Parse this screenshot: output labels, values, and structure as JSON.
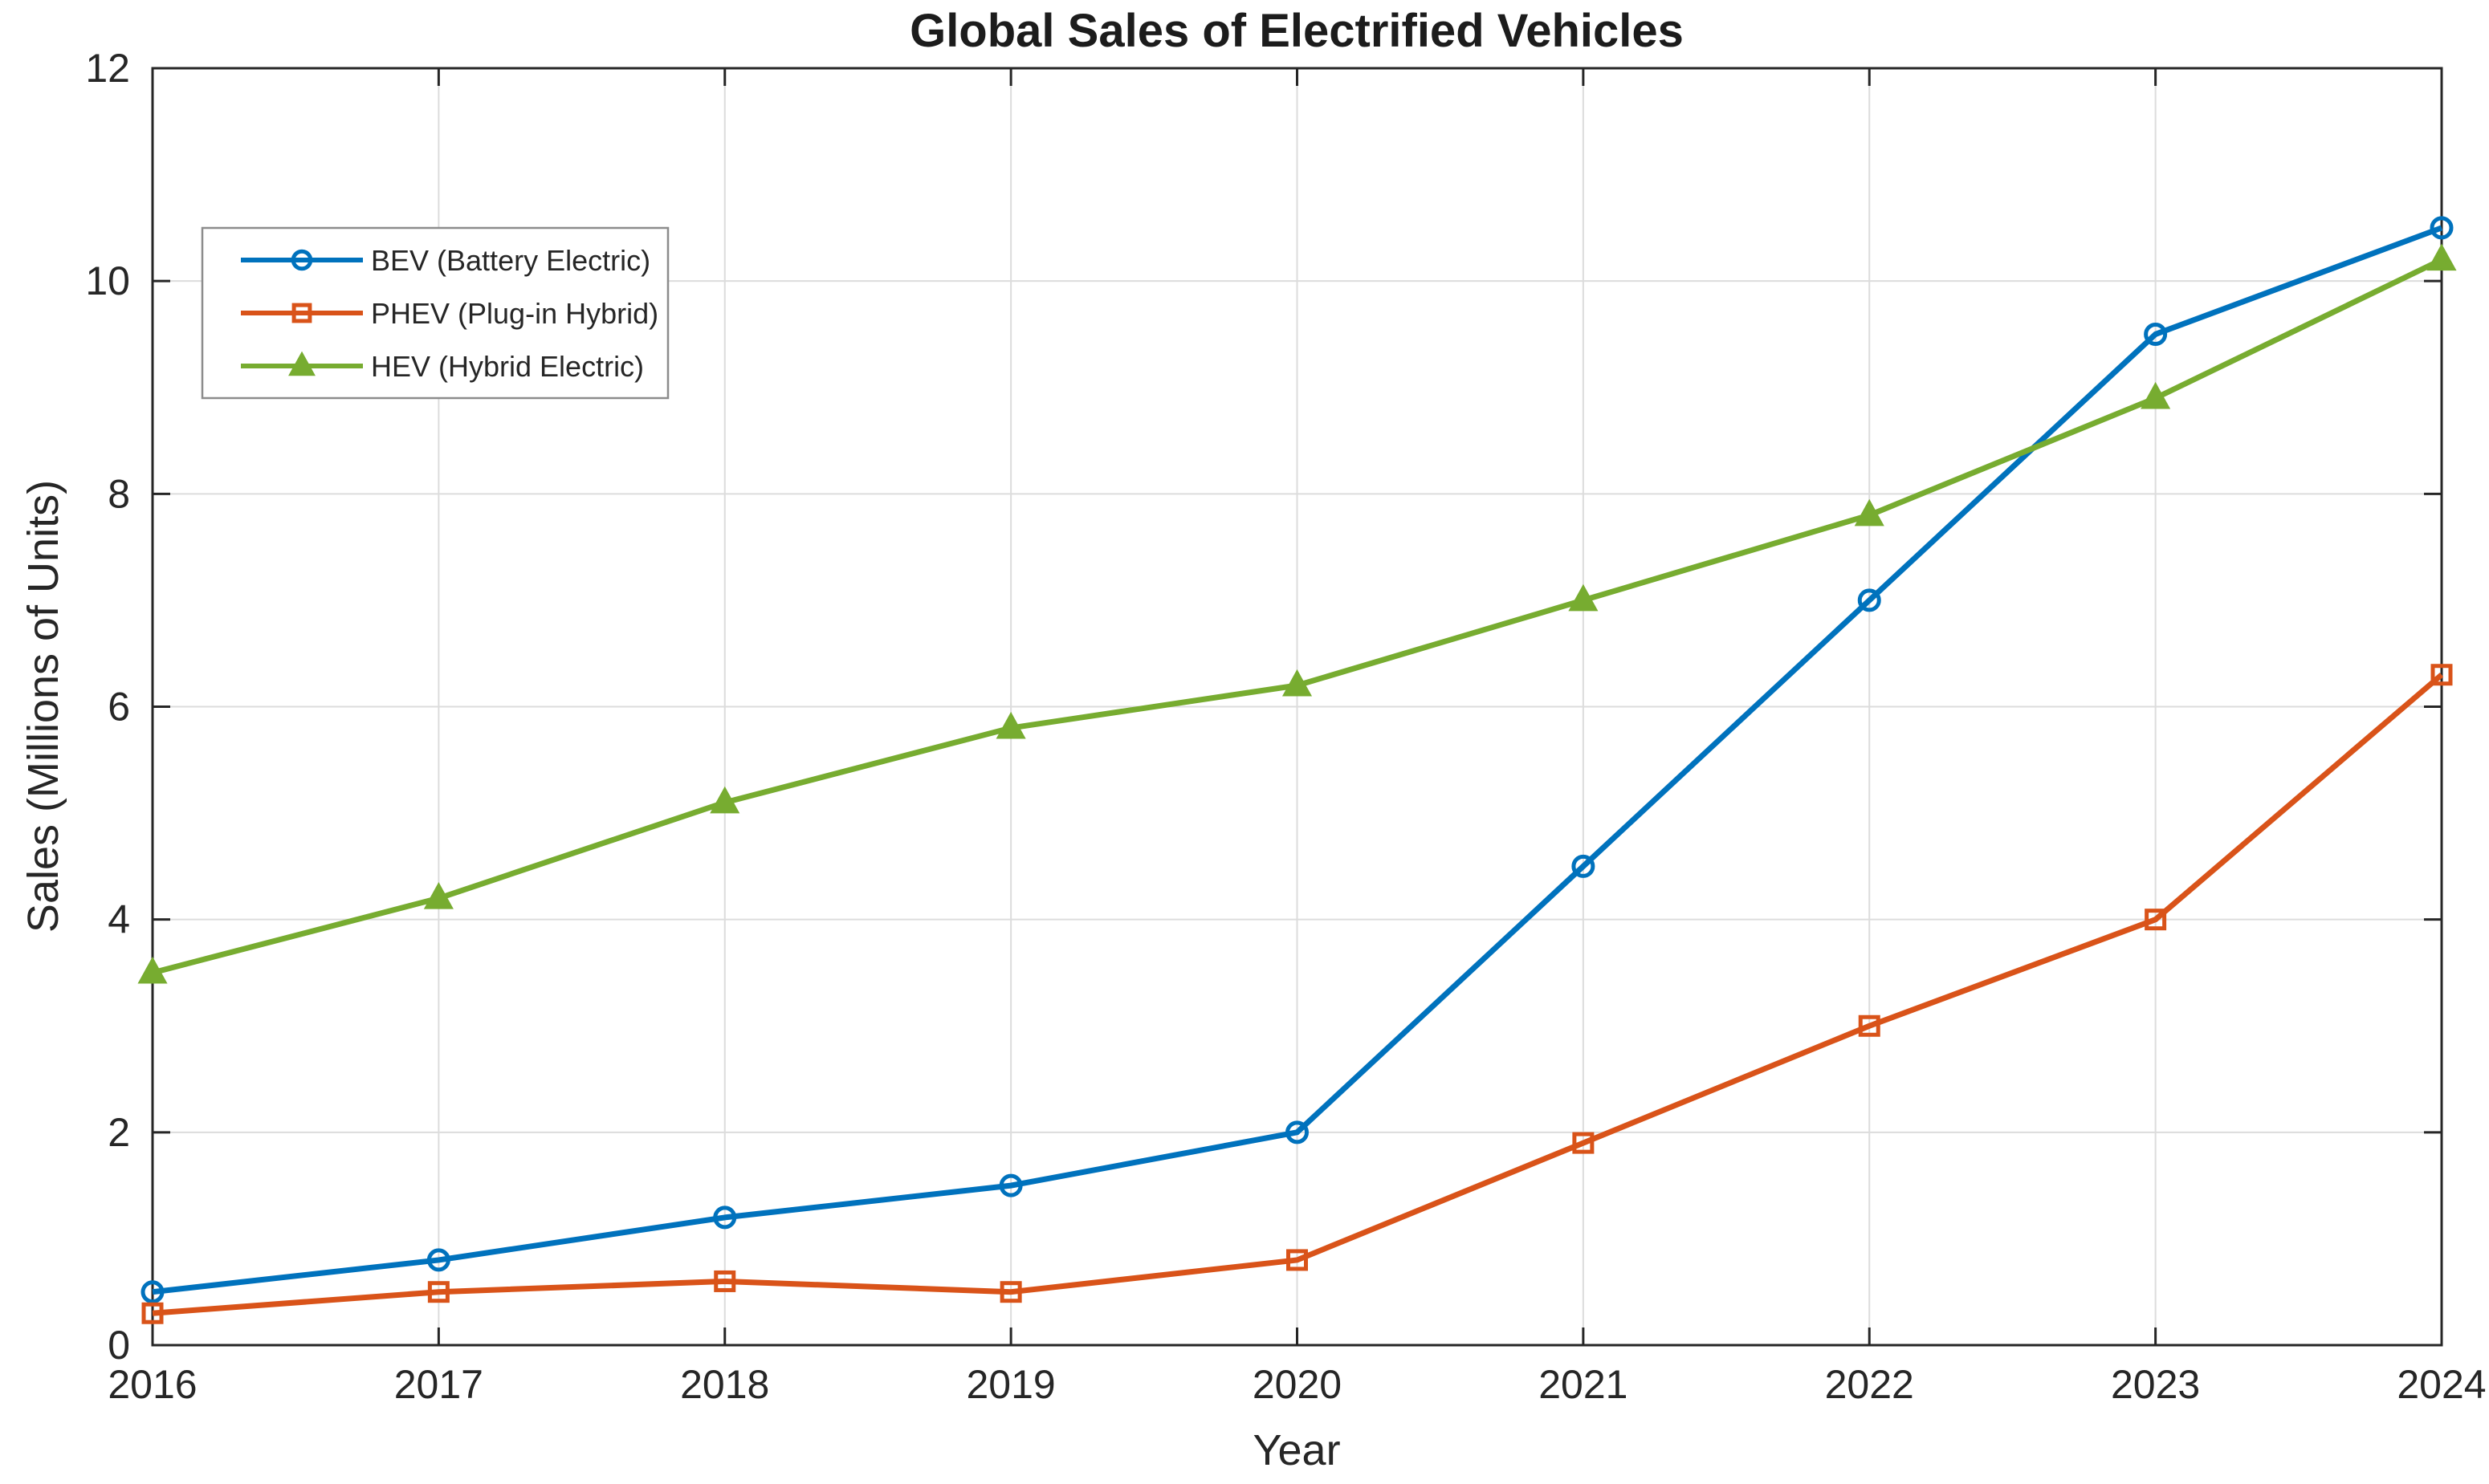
{
  "chart_data": {
    "type": "line",
    "title": "Global Sales of Electrified Vehicles",
    "xlabel": "Year",
    "ylabel": "Sales (Millions of Units)",
    "x": [
      2016,
      2017,
      2018,
      2019,
      2020,
      2021,
      2022,
      2023,
      2024
    ],
    "xlim": [
      2016,
      2024
    ],
    "ylim": [
      0,
      12
    ],
    "xticks": [
      2016,
      2017,
      2018,
      2019,
      2020,
      2021,
      2022,
      2023,
      2024
    ],
    "yticks": [
      0,
      2,
      4,
      6,
      8,
      10,
      12
    ],
    "grid": true,
    "legend": {
      "position": "top-left-inside",
      "entries": [
        "BEV (Battery Electric)",
        "PHEV (Plug-in Hybrid)",
        "HEV (Hybrid Electric)"
      ]
    },
    "series": [
      {
        "name": "BEV (Battery Electric)",
        "slug": "bev",
        "color": "#0072BD",
        "marker": "circle",
        "marker_fill": "hollow",
        "values": [
          0.5,
          0.8,
          1.2,
          1.5,
          2.0,
          4.5,
          7.0,
          9.5,
          10.5
        ]
      },
      {
        "name": "PHEV (Plug-in Hybrid)",
        "slug": "phev",
        "color": "#D95319",
        "marker": "square",
        "marker_fill": "hollow",
        "values": [
          0.3,
          0.5,
          0.6,
          0.5,
          0.8,
          1.9,
          3.0,
          4.0,
          6.3
        ]
      },
      {
        "name": "HEV (Hybrid Electric)",
        "slug": "hev",
        "color": "#77AC30",
        "marker": "triangle",
        "marker_fill": "solid",
        "values": [
          3.5,
          4.2,
          5.1,
          5.8,
          6.2,
          7.0,
          7.8,
          8.9,
          10.2
        ]
      }
    ],
    "colors": {
      "axis": "#262626",
      "grid": "#dcdcdc",
      "text": "#262626",
      "background": "#ffffff"
    }
  }
}
